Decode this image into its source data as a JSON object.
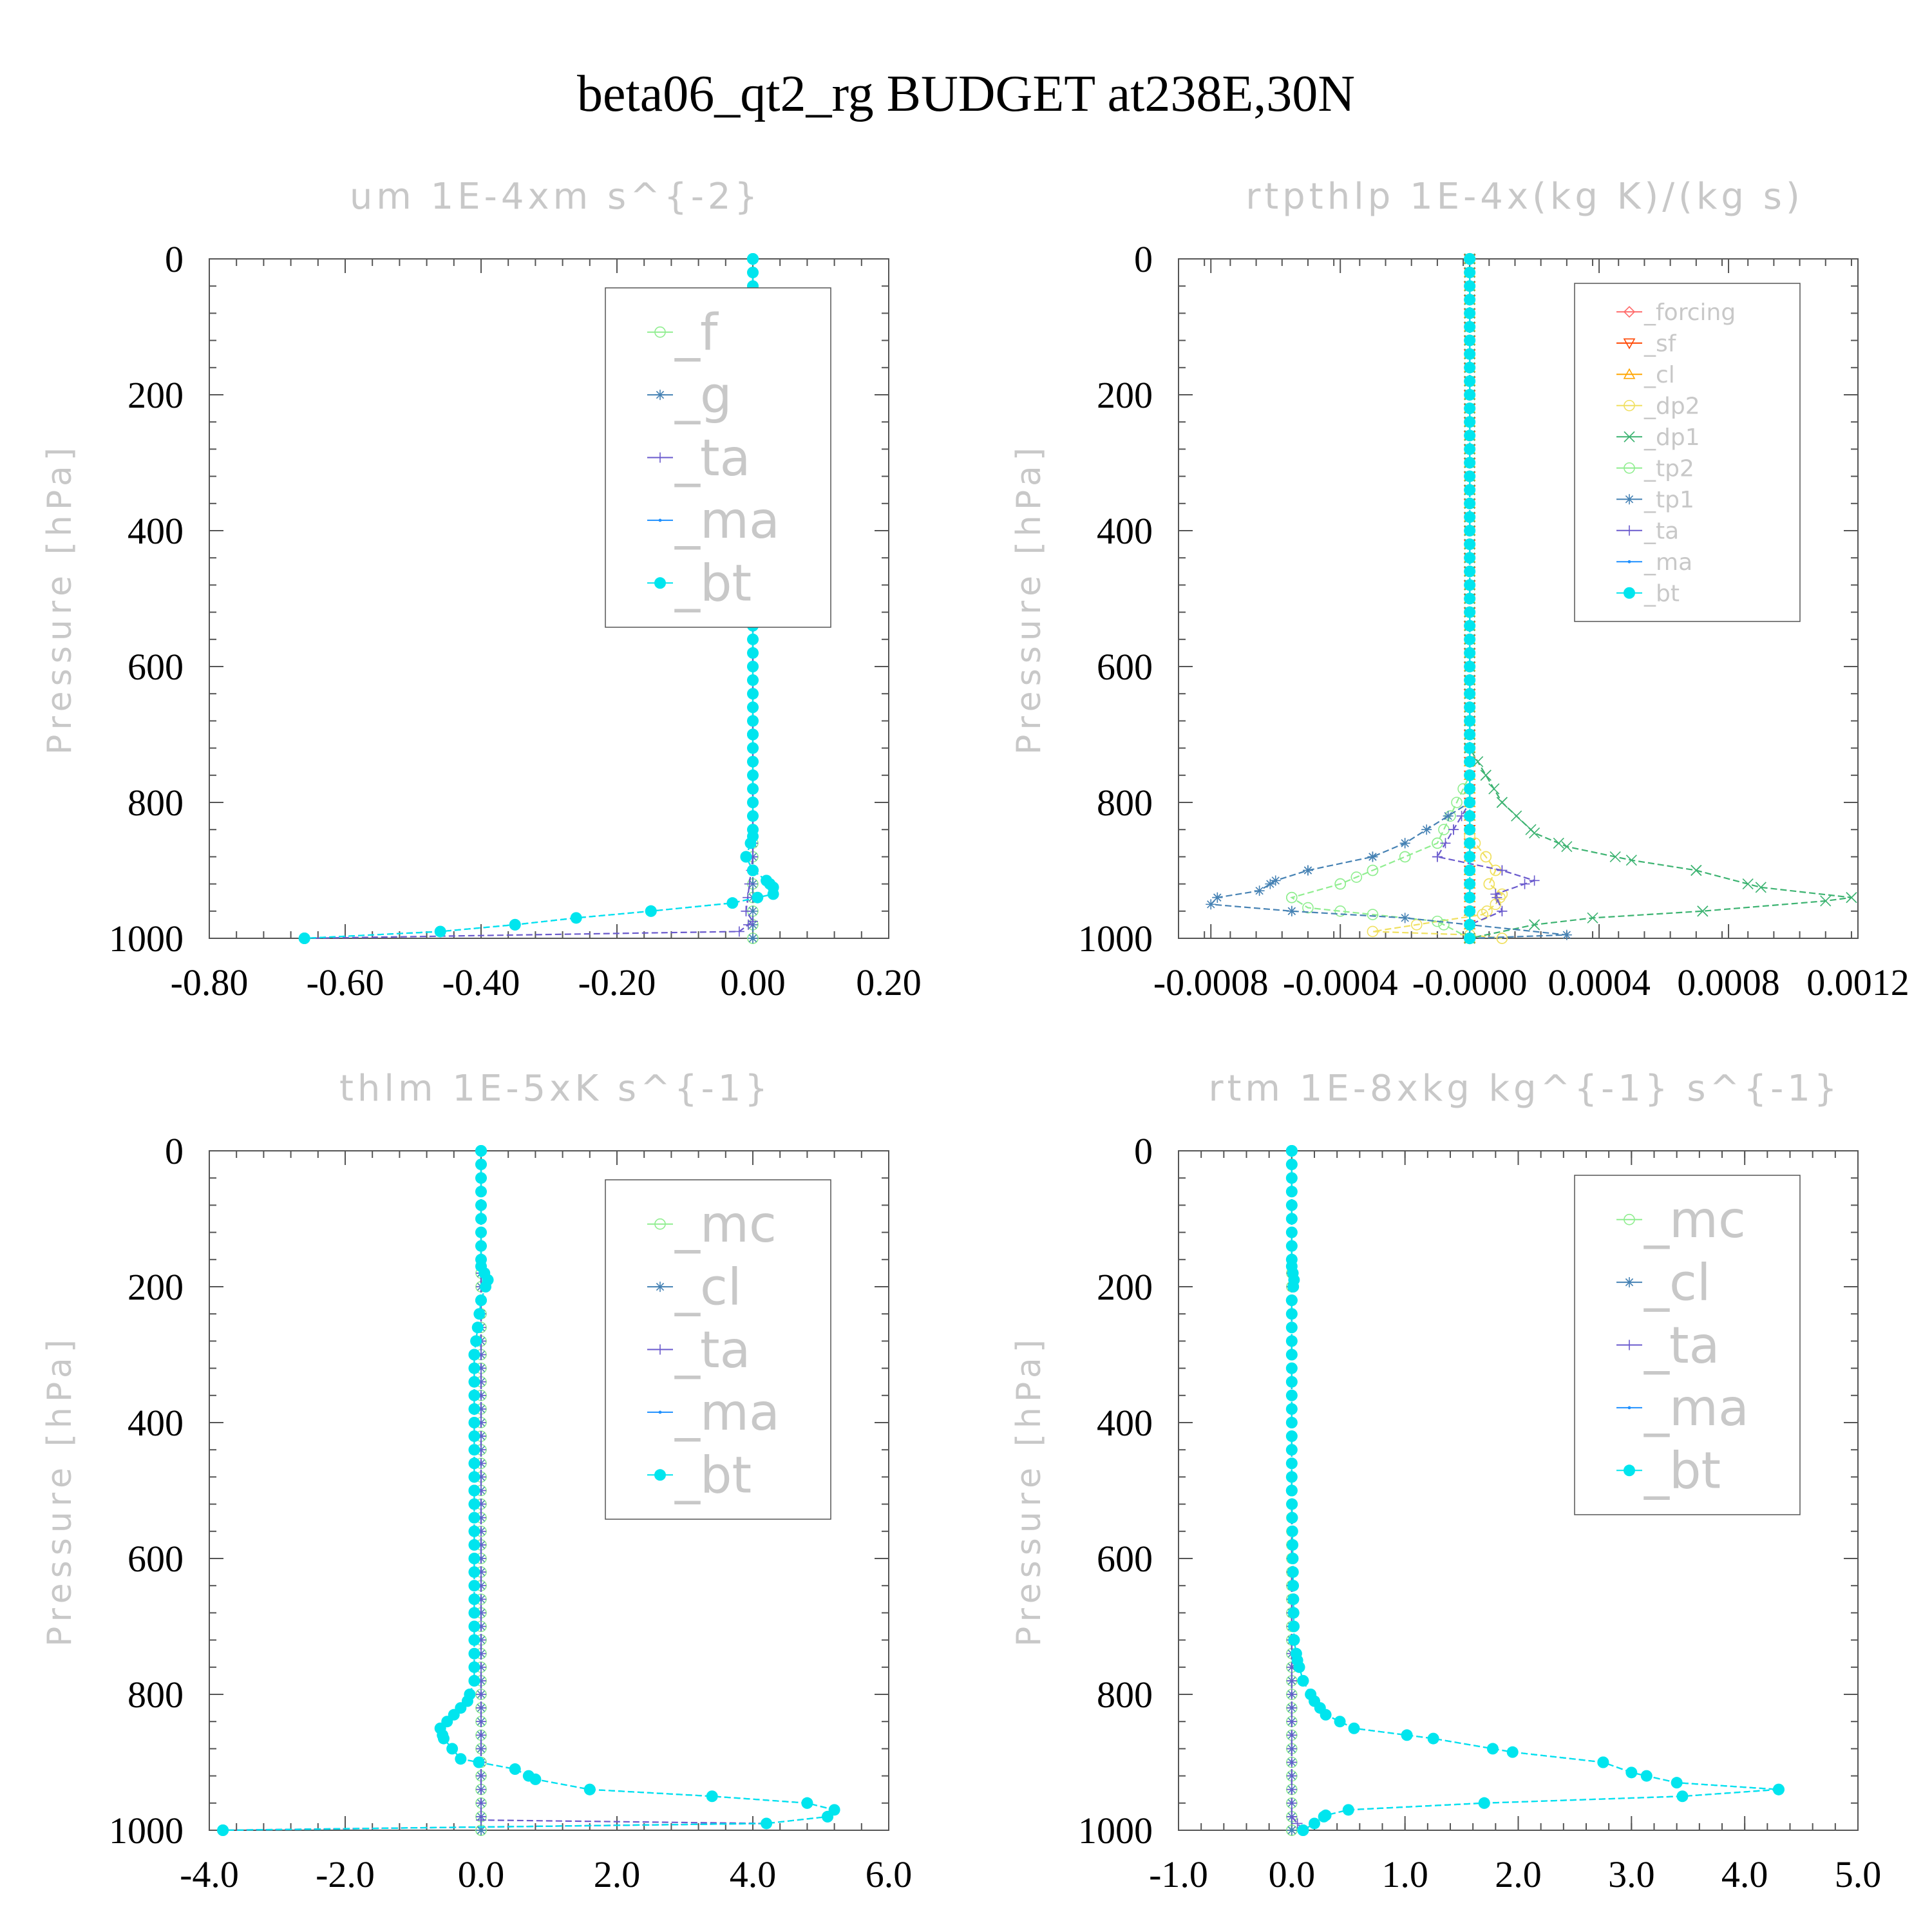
{
  "title": "beta06_qt2_rg  BUDGET at238E,30N",
  "chart_data": [
    {
      "type": "line",
      "title": "um  1E-4xm s^{-2}",
      "ylabel": "Pressure [hPa]",
      "xlabel": "",
      "xlim": [
        -0.8,
        0.2
      ],
      "ylim": [
        1000,
        0
      ],
      "y_inverted": true,
      "xticks": [
        "-0.80",
        "-0.60",
        "-0.40",
        "-0.20",
        "0.00",
        "0.20"
      ],
      "yticks": [
        "0",
        "200",
        "400",
        "600",
        "800",
        "1000"
      ],
      "legend": "top-right",
      "series": [
        {
          "name": "_f",
          "color": "#90ee90",
          "marker": "circle-open",
          "x": [
            0,
            0
          ],
          "y": [
            0,
            1000
          ]
        },
        {
          "name": "_g",
          "color": "#4682b4",
          "marker": "asterisk",
          "x": [
            0,
            0
          ],
          "y": [
            0,
            1000
          ]
        },
        {
          "name": "_ta",
          "color": "#6a5acd",
          "marker": "plus",
          "x": [
            0.0,
            0.0,
            -0.01,
            0.0,
            -0.02,
            -0.66
          ],
          "y": [
            0,
            880,
            960,
            975,
            990,
            1000
          ]
        },
        {
          "name": "_ma",
          "color": "#1e90ff",
          "marker": "dot",
          "x": [
            0.0,
            0.0,
            -0.01,
            0.0,
            0.01,
            0.0,
            0.0,
            0.0,
            0.0,
            -0.01,
            0.0,
            0.02,
            0.03,
            0.03,
            -0.03,
            -0.15,
            -0.26,
            -0.35,
            -0.46,
            -0.66
          ],
          "y": [
            0,
            160,
            190,
            230,
            260,
            300,
            500,
            700,
            850,
            880,
            900,
            915,
            925,
            935,
            948,
            960,
            970,
            980,
            990,
            1000
          ]
        },
        {
          "name": "_bt",
          "color": "#00e5ee",
          "marker": "circle-filled",
          "x": [
            0.0,
            0.0,
            -0.01,
            0.0,
            0.01,
            0.0,
            0.0,
            0.0,
            0.0,
            -0.01,
            0.0,
            0.02,
            0.03,
            0.03,
            -0.03,
            -0.15,
            -0.26,
            -0.35,
            -0.46,
            -0.66
          ],
          "y": [
            0,
            160,
            190,
            230,
            260,
            300,
            500,
            700,
            850,
            880,
            900,
            915,
            925,
            935,
            948,
            960,
            970,
            980,
            990,
            1000
          ]
        }
      ]
    },
    {
      "type": "line",
      "title": "rtpthlp  1E-4x(kg K)/(kg s)",
      "ylabel": "Pressure [hPa]",
      "xlabel": "",
      "xlim": [
        -0.0009,
        0.0012
      ],
      "ylim": [
        1000,
        0
      ],
      "y_inverted": true,
      "xticks": [
        "-0.0008",
        "-0.0004",
        "-0.0000",
        "0.0004",
        "0.0008",
        "0.0012"
      ],
      "yticks": [
        "0",
        "200",
        "400",
        "600",
        "800",
        "1000"
      ],
      "legend": "top-right",
      "series": [
        {
          "name": "_forcing",
          "color": "#ff6b6b",
          "marker": "diamond-open",
          "x": [
            0,
            0
          ],
          "y": [
            0,
            1000
          ]
        },
        {
          "name": "_sf",
          "color": "#ff4500",
          "marker": "triangle-down",
          "x": [
            0,
            0
          ],
          "y": [
            0,
            1000
          ]
        },
        {
          "name": "_cl",
          "color": "#ffa500",
          "marker": "triangle-up",
          "x": [
            0,
            0
          ],
          "y": [
            0,
            1000
          ]
        },
        {
          "name": "_dp2",
          "color": "#f0e060",
          "marker": "circle-open",
          "x": [
            0.0,
            0.0,
            0.0,
            5e-05,
            8e-05,
            6e-05,
            0.0001,
            8e-05,
            4e-05,
            -0.0003,
            0.0,
            0.0001
          ],
          "y": [
            0,
            700,
            850,
            880,
            900,
            920,
            935,
            950,
            965,
            990,
            995,
            1000
          ]
        },
        {
          "name": "_dp1",
          "color": "#3cb371",
          "marker": "x",
          "x": [
            0.0,
            0.0,
            5e-05,
            0.0001,
            0.0002,
            0.0003,
            0.0005,
            0.0007,
            0.0009,
            0.00118,
            0.0011,
            0.00072,
            0.00038,
            0.0002,
            0.0
          ],
          "y": [
            0,
            720,
            760,
            800,
            845,
            865,
            885,
            900,
            925,
            940,
            945,
            960,
            970,
            980,
            1000
          ]
        },
        {
          "name": "_tp2",
          "color": "#90ee90",
          "marker": "circle-open",
          "x": [
            0.0,
            0.0,
            -0.0001,
            -0.0002,
            -0.0003,
            -0.00035,
            -0.0004,
            -0.00055,
            -0.0005,
            -0.0003,
            -0.0001,
            0.0
          ],
          "y": [
            0,
            760,
            860,
            880,
            900,
            910,
            920,
            940,
            955,
            965,
            975,
            1000
          ]
        },
        {
          "name": "_tp1",
          "color": "#4682b4",
          "marker": "asterisk",
          "x": [
            0.0,
            0.0,
            -0.0002,
            -0.0003,
            -0.0005,
            -0.0006,
            -0.00065,
            -0.00078,
            -0.0008,
            -0.00055,
            -0.0002,
            0.0,
            0.0003,
            0.0
          ],
          "y": [
            0,
            800,
            860,
            880,
            900,
            915,
            930,
            940,
            950,
            960,
            970,
            980,
            995,
            1000
          ]
        },
        {
          "name": "_ta",
          "color": "#6a5acd",
          "marker": "plus",
          "x": [
            0.0,
            0.0,
            -5e-05,
            -0.0001,
            0.0001,
            0.0002,
            8e-05,
            0.0001,
            0.0,
            0.0
          ],
          "y": [
            0,
            800,
            840,
            880,
            900,
            915,
            935,
            960,
            980,
            1000
          ]
        },
        {
          "name": "_ma",
          "color": "#1e90ff",
          "marker": "dot",
          "x": [
            0,
            0
          ],
          "y": [
            0,
            1000
          ]
        },
        {
          "name": "_bt",
          "color": "#00e5ee",
          "marker": "circle-filled",
          "x": [
            0,
            0
          ],
          "y": [
            0,
            1000
          ]
        }
      ]
    },
    {
      "type": "line",
      "title": "thlm  1E-5xK s^{-1}",
      "ylabel": "Pressure [hPa]",
      "xlabel": "",
      "xlim": [
        -4.0,
        6.0
      ],
      "ylim": [
        1000,
        0
      ],
      "y_inverted": true,
      "xticks": [
        "-4.0",
        "-2.0",
        "0.0",
        "2.0",
        "4.0",
        "6.0"
      ],
      "yticks": [
        "0",
        "200",
        "400",
        "600",
        "800",
        "1000"
      ],
      "legend": "top-right",
      "series": [
        {
          "name": "_mc",
          "color": "#90ee90",
          "marker": "circle-open",
          "x": [
            0,
            0
          ],
          "y": [
            0,
            1000
          ]
        },
        {
          "name": "_cl",
          "color": "#4682b4",
          "marker": "asterisk",
          "x": [
            0,
            0
          ],
          "y": [
            0,
            1000
          ]
        },
        {
          "name": "_ta",
          "color": "#6a5acd",
          "marker": "plus",
          "x": [
            0.0,
            0.0,
            0.0,
            4.2,
            -3.8
          ],
          "y": [
            0,
            900,
            985,
            990,
            1000
          ]
        },
        {
          "name": "_ma",
          "color": "#1e90ff",
          "marker": "dot",
          "x": [
            0.0,
            0.0,
            0.1,
            0.0,
            -0.1,
            -0.1,
            -0.1,
            -0.2,
            -0.4,
            -0.6,
            -0.55,
            -0.3,
            0.5,
            0.8,
            1.6,
            3.4,
            4.8,
            5.2,
            5.1,
            4.2,
            -3.8
          ],
          "y": [
            0,
            170,
            190,
            220,
            300,
            500,
            780,
            810,
            830,
            850,
            865,
            895,
            910,
            925,
            940,
            950,
            960,
            970,
            980,
            990,
            1000
          ]
        },
        {
          "name": "_bt",
          "color": "#00e5ee",
          "marker": "circle-filled",
          "x": [
            0.0,
            0.0,
            0.1,
            0.0,
            -0.1,
            -0.1,
            -0.1,
            -0.2,
            -0.4,
            -0.6,
            -0.55,
            -0.3,
            0.5,
            0.8,
            1.6,
            3.4,
            4.8,
            5.2,
            5.1,
            4.2,
            -3.8
          ],
          "y": [
            0,
            170,
            190,
            220,
            300,
            500,
            780,
            810,
            830,
            850,
            865,
            895,
            910,
            925,
            940,
            950,
            960,
            970,
            980,
            990,
            1000
          ]
        }
      ]
    },
    {
      "type": "line",
      "title": "rtm  1E-8xkg kg^{-1} s^{-1}",
      "ylabel": "Pressure [hPa]",
      "xlabel": "",
      "xlim": [
        -1.0,
        5.0
      ],
      "ylim": [
        1000,
        0
      ],
      "y_inverted": true,
      "xticks": [
        "-1.0",
        "0.0",
        "1.0",
        "2.0",
        "3.0",
        "4.0",
        "5.0"
      ],
      "yticks": [
        "0",
        "200",
        "400",
        "600",
        "800",
        "1000"
      ],
      "legend": "top-right",
      "series": [
        {
          "name": "_mc",
          "color": "#90ee90",
          "marker": "circle-open",
          "x": [
            0,
            0
          ],
          "y": [
            0,
            1000
          ]
        },
        {
          "name": "_cl",
          "color": "#4682b4",
          "marker": "asterisk",
          "x": [
            0,
            0
          ],
          "y": [
            0,
            1000
          ]
        },
        {
          "name": "_ta",
          "color": "#6a5acd",
          "marker": "plus",
          "x": [
            0.0,
            0.0,
            0.05,
            0.1
          ],
          "y": [
            0,
            980,
            990,
            1000
          ]
        },
        {
          "name": "_ma",
          "color": "#1e90ff",
          "marker": "dot",
          "x": [
            0.0,
            0.0,
            0.02,
            0.0,
            0.0,
            0.02,
            0.05,
            0.1,
            0.2,
            0.3,
            0.55,
            1.25,
            1.95,
            2.75,
            3.0,
            3.4,
            4.3,
            3.45,
            1.7,
            0.5,
            0.3,
            0.2,
            0.1
          ],
          "y": [
            0,
            170,
            190,
            220,
            500,
            720,
            750,
            780,
            810,
            830,
            850,
            865,
            885,
            900,
            915,
            930,
            940,
            950,
            960,
            970,
            978,
            990,
            1000
          ]
        },
        {
          "name": "_bt",
          "color": "#00e5ee",
          "marker": "circle-filled",
          "x": [
            0.0,
            0.0,
            0.02,
            0.0,
            0.0,
            0.02,
            0.05,
            0.1,
            0.2,
            0.3,
            0.55,
            1.25,
            1.95,
            2.75,
            3.0,
            3.4,
            4.3,
            3.45,
            1.7,
            0.5,
            0.3,
            0.2,
            0.1
          ],
          "y": [
            0,
            170,
            190,
            220,
            500,
            720,
            750,
            780,
            810,
            830,
            850,
            865,
            885,
            900,
            915,
            930,
            940,
            950,
            960,
            970,
            978,
            990,
            1000
          ]
        }
      ]
    }
  ]
}
